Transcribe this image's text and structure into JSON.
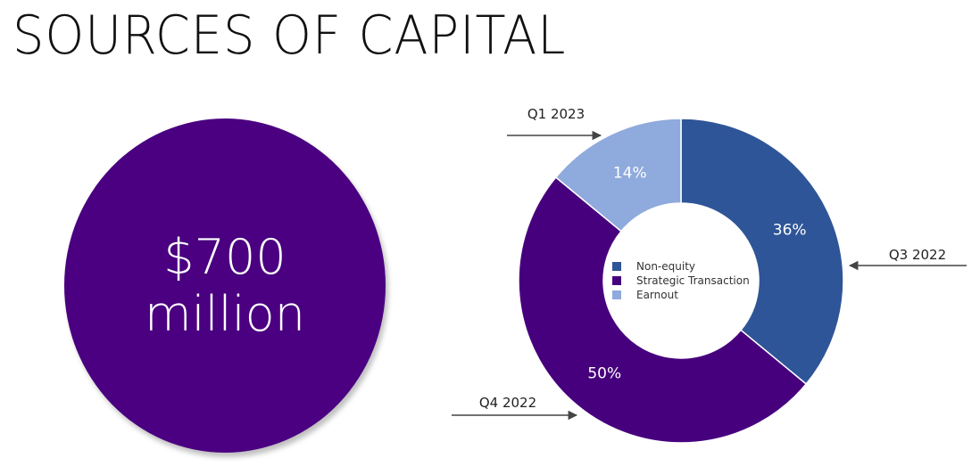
{
  "title": "SOURCES OF CAPITAL",
  "total": {
    "line1": "$700",
    "line2": "million"
  },
  "colors": {
    "non_equity": "#2e5597",
    "strategic": "#47007d",
    "earnout": "#8faadc",
    "arrow": "#444444"
  },
  "chart_data": {
    "type": "pie",
    "title": "",
    "categories": [
      "Non-equity",
      "Strategic Transaction",
      "Earnout"
    ],
    "values": [
      36,
      50,
      14
    ],
    "data_labels": [
      "36%",
      "50%",
      "14%"
    ],
    "legend": [
      "Non-equity",
      "Strategic Transaction",
      "Earnout"
    ],
    "legend_placement": "center",
    "annotations": [
      "Q3 2022",
      "Q4 2022",
      "Q1 2023"
    ]
  }
}
